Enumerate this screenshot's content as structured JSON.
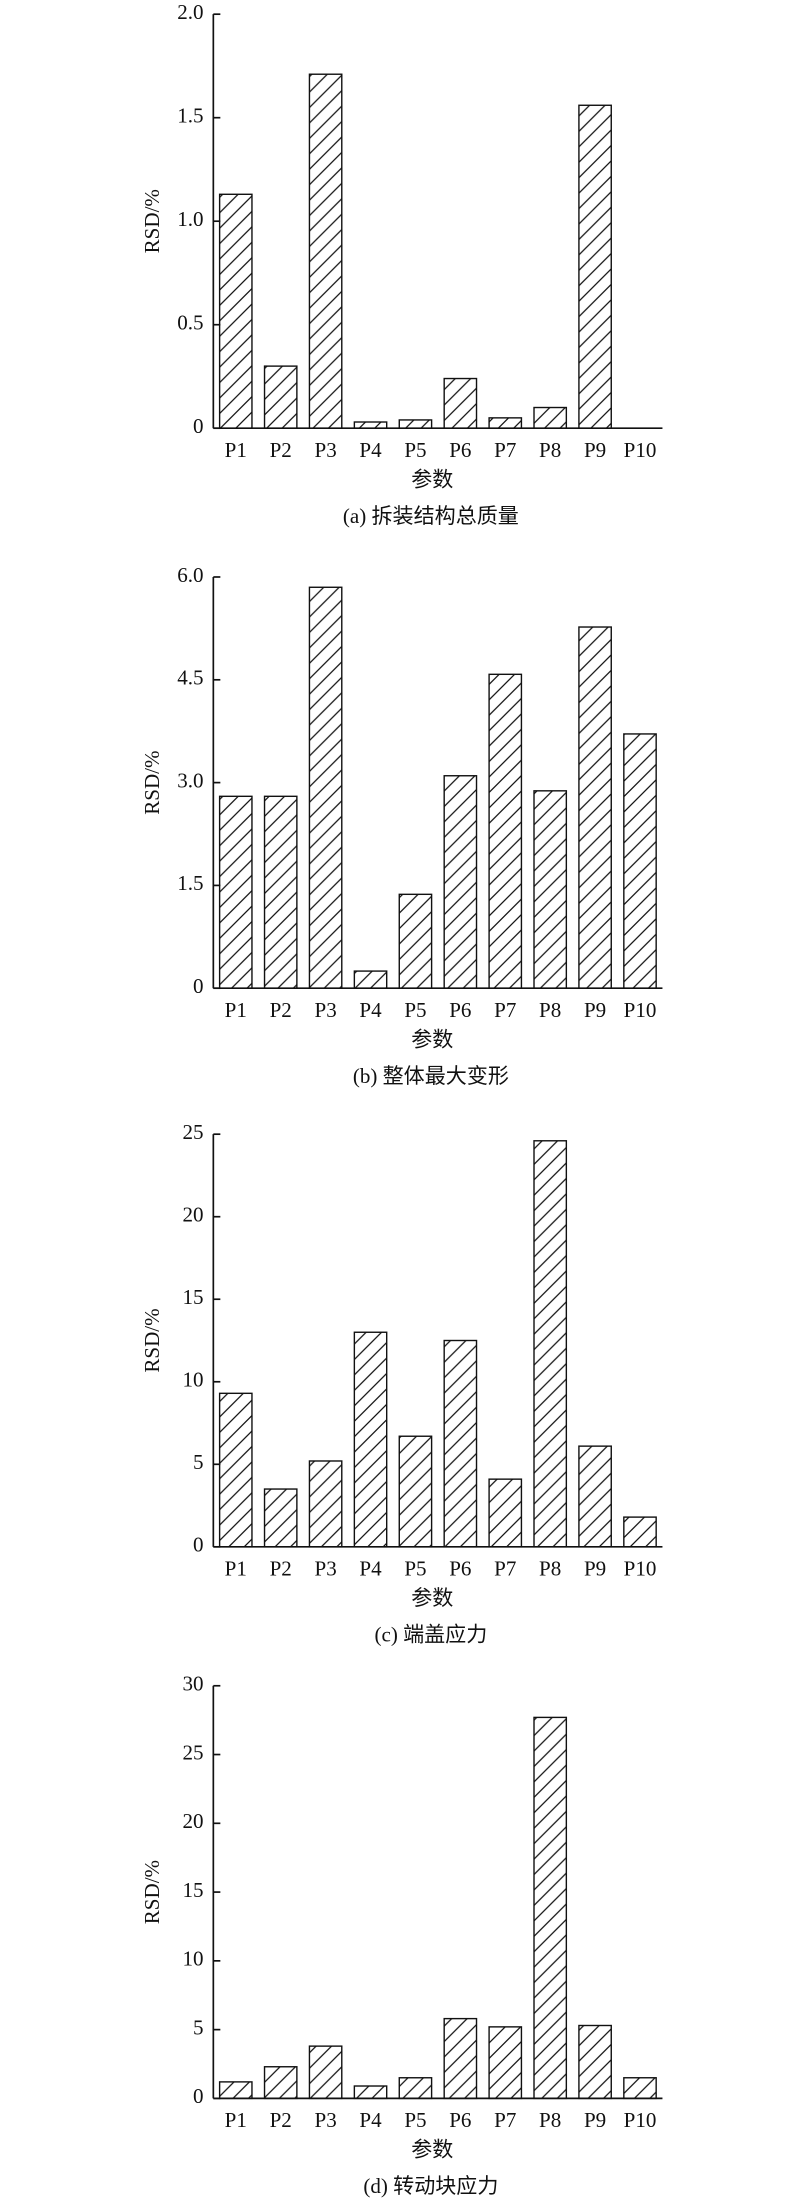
{
  "chart_data": [
    {
      "type": "bar",
      "title": "(a) 拆装结构总质量",
      "x_label": "参数",
      "y_label": "RSD/%",
      "categories": [
        "P1",
        "P2",
        "P3",
        "P4",
        "P5",
        "P6",
        "P7",
        "P8",
        "P9",
        "P10"
      ],
      "values": [
        1.13,
        0.3,
        1.71,
        0.03,
        0.04,
        0.24,
        0.05,
        0.1,
        1.56,
        0
      ],
      "ylim": [
        0,
        2.0
      ],
      "yticks": [
        0,
        0.5,
        {
          "value": 1.0,
          "label": "1.0"
        },
        1.5,
        {
          "value": 2.0,
          "label": "2.0"
        }
      ]
    },
    {
      "type": "bar",
      "title": "(b) 整体最大变形",
      "x_label": "参数",
      "y_label": "RSD/%",
      "categories": [
        "P1",
        "P2",
        "P3",
        "P4",
        "P5",
        "P6",
        "P7",
        "P8",
        "P9",
        "P10"
      ],
      "values": [
        2.8,
        2.8,
        5.85,
        0.25,
        1.37,
        3.1,
        4.58,
        2.88,
        5.27,
        3.71
      ],
      "ylim": [
        0,
        6.0
      ],
      "yticks": [
        0,
        1.5,
        {
          "value": 3.0,
          "label": "3.0"
        },
        4.5,
        {
          "value": 6.0,
          "label": "6.0"
        }
      ]
    },
    {
      "type": "bar",
      "title": "(c) 端盖应力",
      "x_label": "参数",
      "y_label": "RSD/%",
      "categories": [
        "P1",
        "P2",
        "P3",
        "P4",
        "P5",
        "P6",
        "P7",
        "P8",
        "P9",
        "P10"
      ],
      "values": [
        9.3,
        3.5,
        5.2,
        13.0,
        6.7,
        12.5,
        4.1,
        24.6,
        6.1,
        1.8
      ],
      "ylim": [
        0,
        25
      ],
      "yticks": [
        0,
        5,
        10,
        15,
        20,
        25
      ]
    },
    {
      "type": "bar",
      "title": "(d) 转动块应力",
      "x_label": "参数",
      "y_label": "RSD/%",
      "categories": [
        "P1",
        "P2",
        "P3",
        "P4",
        "P5",
        "P6",
        "P7",
        "P8",
        "P9",
        "P10"
      ],
      "values": [
        1.2,
        2.3,
        3.8,
        0.9,
        1.5,
        5.8,
        5.2,
        27.7,
        5.3,
        1.5
      ],
      "ylim": [
        0,
        30
      ],
      "yticks": [
        0,
        5,
        10,
        15,
        20,
        25,
        30
      ]
    }
  ]
}
